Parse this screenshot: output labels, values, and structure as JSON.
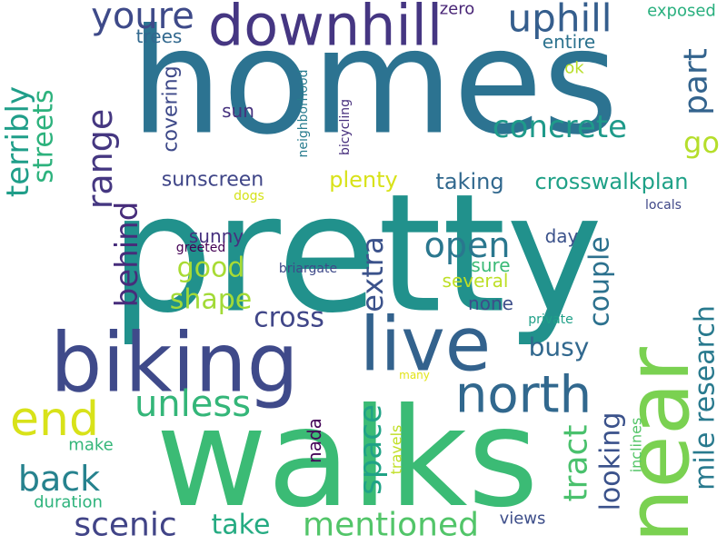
{
  "words": [
    {
      "text": "homes",
      "color": "#2c7391",
      "vertical": false
    },
    {
      "text": "pretty",
      "color": "#21918c",
      "vertical": false
    },
    {
      "text": "walks",
      "color": "#3bbb75",
      "vertical": false
    },
    {
      "text": "biking",
      "color": "#3f4a8a",
      "vertical": false
    },
    {
      "text": "live",
      "color": "#33628d",
      "vertical": false
    },
    {
      "text": "near",
      "color": "#7ad151",
      "vertical": true
    },
    {
      "text": "downhill",
      "color": "#453682",
      "vertical": false
    },
    {
      "text": "north",
      "color": "#31688e",
      "vertical": false
    },
    {
      "text": "end",
      "color": "#d8e219",
      "vertical": false
    },
    {
      "text": "uphill",
      "color": "#355e8d",
      "vertical": false
    },
    {
      "text": "youre",
      "color": "#3e4a89",
      "vertical": false
    },
    {
      "text": "unless",
      "color": "#34b679",
      "vertical": false
    },
    {
      "text": "back",
      "color": "#26828e",
      "vertical": false
    },
    {
      "text": "scenic",
      "color": "#414487",
      "vertical": false
    },
    {
      "text": "mentioned",
      "color": "#52c569",
      "vertical": false
    },
    {
      "text": "range",
      "color": "#453781",
      "vertical": true
    },
    {
      "text": "terribly",
      "color": "#1f9e89",
      "vertical": true
    },
    {
      "text": "streets",
      "color": "#2db27d",
      "vertical": true
    },
    {
      "text": "part",
      "color": "#33638d",
      "vertical": true
    },
    {
      "text": "concrete",
      "color": "#1f9a8a",
      "vertical": false
    },
    {
      "text": "go",
      "color": "#b5de2b",
      "vertical": false
    },
    {
      "text": "open",
      "color": "#2a778e",
      "vertical": false
    },
    {
      "text": "behind",
      "color": "#472d7b",
      "vertical": true
    },
    {
      "text": "space",
      "color": "#20a386",
      "vertical": true
    },
    {
      "text": "tract",
      "color": "#4ac16d",
      "vertical": true
    },
    {
      "text": "couple",
      "color": "#2c718e",
      "vertical": true
    },
    {
      "text": "looking",
      "color": "#3b528b",
      "vertical": true
    },
    {
      "text": "mile research",
      "color": "#297a8e",
      "vertical": true
    },
    {
      "text": "extra",
      "color": "#3b528b",
      "vertical": true
    },
    {
      "text": "good",
      "color": "#a8db34",
      "vertical": false
    },
    {
      "text": "shape",
      "color": "#a2da37",
      "vertical": false
    },
    {
      "text": "cross",
      "color": "#404688",
      "vertical": false
    },
    {
      "text": "busy",
      "color": "#31688e",
      "vertical": false
    },
    {
      "text": "take",
      "color": "#25ab82",
      "vertical": false
    },
    {
      "text": "sunscreen",
      "color": "#404688",
      "vertical": false
    },
    {
      "text": "crosswalkplan",
      "color": "#1fa187",
      "vertical": false
    },
    {
      "text": "taking",
      "color": "#31688e",
      "vertical": false
    },
    {
      "text": "plenty",
      "color": "#d8e219",
      "vertical": false
    },
    {
      "text": "covering",
      "color": "#3e4989",
      "vertical": true
    },
    {
      "text": "sun",
      "color": "#46327e",
      "vertical": false
    },
    {
      "text": "trees",
      "color": "#31688e",
      "vertical": false
    },
    {
      "text": "entire",
      "color": "#2c728e",
      "vertical": false
    },
    {
      "text": "exposed",
      "color": "#2ab07f",
      "vertical": false
    },
    {
      "text": "zero",
      "color": "#482576",
      "vertical": false
    },
    {
      "text": "ok",
      "color": "#b8de29",
      "vertical": false
    },
    {
      "text": "sunny",
      "color": "#46307e",
      "vertical": false
    },
    {
      "text": "day",
      "color": "#3b528b",
      "vertical": false
    },
    {
      "text": "sure",
      "color": "#3aba76",
      "vertical": false
    },
    {
      "text": "several",
      "color": "#bddf26",
      "vertical": false
    },
    {
      "text": "none",
      "color": "#3d4e8a",
      "vertical": false
    },
    {
      "text": "make",
      "color": "#34b679",
      "vertical": false
    },
    {
      "text": "nada",
      "color": "#450559",
      "vertical": true
    },
    {
      "text": "travels",
      "color": "#c0df25",
      "vertical": true
    },
    {
      "text": "inclines",
      "color": "#54c568",
      "vertical": true
    },
    {
      "text": "views",
      "color": "#3d4e8a",
      "vertical": false
    },
    {
      "text": "duration",
      "color": "#2eb37c",
      "vertical": false
    },
    {
      "text": "neighborhood",
      "color": "#287c8e",
      "vertical": true
    },
    {
      "text": "bicycling",
      "color": "#472f7d",
      "vertical": true
    },
    {
      "text": "dogs",
      "color": "#d5e21a",
      "vertical": false
    },
    {
      "text": "locals",
      "color": "#3f4788",
      "vertical": false
    },
    {
      "text": "greeted",
      "color": "#440154",
      "vertical": false
    },
    {
      "text": "briargate",
      "color": "#3e4989",
      "vertical": false
    },
    {
      "text": "private",
      "color": "#1fa088",
      "vertical": false
    },
    {
      "text": "many",
      "color": "#e2e418",
      "vertical": false
    }
  ]
}
